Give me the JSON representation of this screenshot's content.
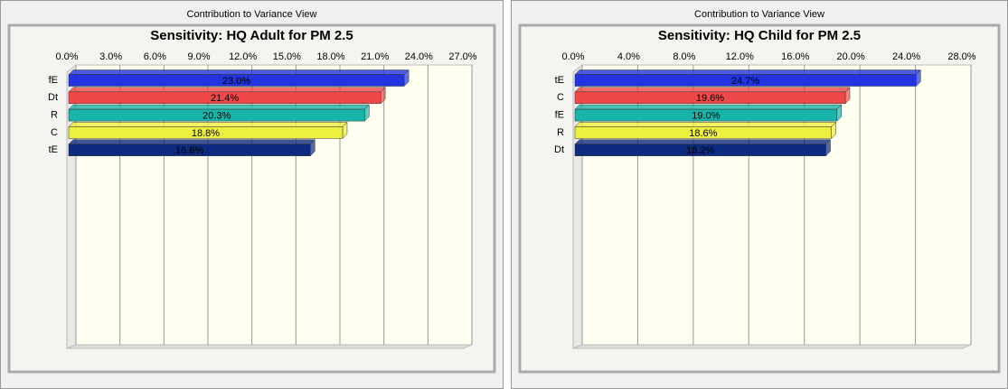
{
  "chart_data": [
    {
      "type": "hbar",
      "window_title": "Contribution to Variance View",
      "title": "Sensitivity: HQ Adult for PM 2.5",
      "categories": [
        "fE",
        "Dt",
        "R",
        "C",
        "tE"
      ],
      "values": [
        23.0,
        21.4,
        20.3,
        18.8,
        16.6
      ],
      "value_labels": [
        "23.0%",
        "21.4%",
        "20.3%",
        "18.8%",
        "16.6%"
      ],
      "colors": [
        "#2233e0",
        "#f04848",
        "#18b4aa",
        "#eef040",
        "#0c2a80"
      ],
      "xlim": [
        0,
        27
      ],
      "xticks": [
        {
          "value": 0,
          "label": "0.0%"
        },
        {
          "value": 3,
          "label": "3.0%"
        },
        {
          "value": 6,
          "label": "6.0%"
        },
        {
          "value": 9,
          "label": "9.0%"
        },
        {
          "value": 12,
          "label": "12.0%"
        },
        {
          "value": 15,
          "label": "15.0%"
        },
        {
          "value": 18,
          "label": "18.0%"
        },
        {
          "value": 21,
          "label": "21.0%"
        },
        {
          "value": 24,
          "label": "24.0%"
        },
        {
          "value": 27,
          "label": "27.0%"
        }
      ],
      "grid": true
    },
    {
      "type": "hbar",
      "window_title": "Contribution to Variance View",
      "title": "Sensitivity: HQ Child for PM 2.5",
      "categories": [
        "tE",
        "C",
        "fE",
        "R",
        "Dt"
      ],
      "values": [
        24.7,
        19.6,
        19.0,
        18.6,
        18.2
      ],
      "value_labels": [
        "24.7%",
        "19.6%",
        "19.0%",
        "18.6%",
        "18.2%"
      ],
      "colors": [
        "#2233e0",
        "#f04848",
        "#18b4aa",
        "#eef040",
        "#0c2a80"
      ],
      "xlim": [
        0,
        28
      ],
      "xticks": [
        {
          "value": 0,
          "label": "0.0%"
        },
        {
          "value": 4,
          "label": "4.0%"
        },
        {
          "value": 8,
          "label": "8.0%"
        },
        {
          "value": 12,
          "label": "12.0%"
        },
        {
          "value": 16,
          "label": "16.0%"
        },
        {
          "value": 20,
          "label": "20.0%"
        },
        {
          "value": 24,
          "label": "24.0%"
        },
        {
          "value": 28,
          "label": "28.0%"
        }
      ],
      "grid": true
    }
  ]
}
